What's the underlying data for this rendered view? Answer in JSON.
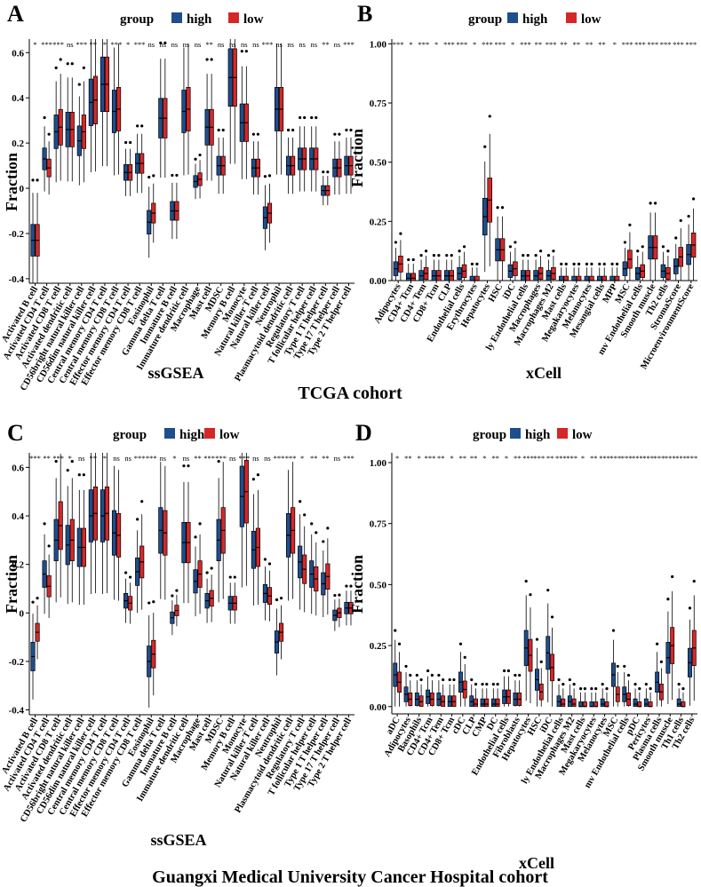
{
  "figure": {
    "cohort_top": "TCGA cohort",
    "cohort_bottom": "Guangxi Medical University Cancer Hospital cohort"
  },
  "colors": {
    "high": "#1F4E8C",
    "low": "#D62728",
    "point": "#000000",
    "axis": "#000000"
  },
  "chart_data": [
    {
      "id": "A",
      "panel_label": "A",
      "type": "boxplot",
      "method": "ssGSEA",
      "legend_title": "group",
      "legend_entries": [
        "high",
        "low"
      ],
      "ylabel": "Fraction",
      "ylim": [
        -0.42,
        0.66
      ],
      "yticks": [
        -0.4,
        -0.2,
        0,
        0.2,
        0.4,
        0.6
      ],
      "ytick_labels": [
        "-0.4",
        "-0.2",
        "0",
        "0.2",
        "0.4",
        "0.6"
      ],
      "categories": [
        "Activated B cell",
        "Activated CD4 T cell",
        "Activated CD8 T cell",
        "Activated dendritic cell",
        "CD56bright natural killer cell",
        "CD56dim natural killer cell",
        "Central memory CD4 T cell",
        "Central memory CD8 T cell",
        "Effector memory CD4 T cell",
        "Effector memory CD8 T cell",
        "Eosinophil",
        "Gamma delta T cell",
        "Immature B cell",
        "Immature dendritic cell",
        "Macrophage",
        "Mast cell",
        "MDSC",
        "Memory B cell",
        "Monocyte",
        "Natural killer T cell",
        "Natural killer cell",
        "Neutrophil",
        "Plasmacytoid dendritic cell",
        "Regulatory T cell",
        "T follicular helper cell",
        "Type 1 T helper cell",
        "Type 17 T helper cell",
        "Type 2 T helper cell"
      ],
      "significance": [
        "*",
        "***",
        "***",
        "ns",
        "***",
        "**",
        "*",
        "***",
        "*",
        "***",
        "ns",
        "ns",
        "ns",
        "ns",
        "ns",
        "**",
        "ns",
        "ns",
        "ns",
        "ns",
        "***",
        "ns",
        "ns",
        "ns",
        "ns",
        "**",
        "ns",
        "***"
      ],
      "series": [
        {
          "name": "high",
          "medians": [
            -0.23,
            0.13,
            0.25,
            0.26,
            0.21,
            0.38,
            0.46,
            0.34,
            0.07,
            0.11,
            -0.15,
            0.31,
            -0.1,
            0.34,
            0.03,
            0.27,
            0.1,
            0.49,
            0.29,
            0.09,
            -0.13,
            0.35,
            0.1,
            0.13,
            0.13,
            -0.01,
            0.09,
            0.1
          ]
        },
        {
          "name": "low",
          "medians": [
            -0.23,
            0.09,
            0.27,
            0.26,
            0.25,
            0.39,
            0.46,
            0.35,
            0.07,
            0.11,
            -0.11,
            0.31,
            -0.1,
            0.35,
            0.04,
            0.27,
            0.1,
            0.49,
            0.29,
            0.09,
            -0.11,
            0.35,
            0.1,
            0.13,
            0.13,
            -0.01,
            0.09,
            0.1
          ]
        }
      ]
    },
    {
      "id": "B",
      "panel_label": "B",
      "type": "boxplot",
      "method": "xCell",
      "legend_title": "group",
      "legend_entries": [
        "high",
        "low"
      ],
      "ylabel": "Fraction",
      "ylim": [
        0,
        1.02
      ],
      "yticks": [
        0,
        0.25,
        0.5,
        0.75,
        1.0
      ],
      "ytick_labels": [
        "0.00",
        "0.25",
        "0.50",
        "0.75",
        "1.00"
      ],
      "categories": [
        "Adipocytes",
        "CD4+ Tcm",
        "CD4+ Tem",
        "CD8+ Tcm",
        "CLP",
        "Endothelial cells",
        "Erythrocytes",
        "Hepatocytes",
        "HSC",
        "iDC",
        "ly Endothelial cells",
        "Macrophages",
        "Macrophages M2",
        "Mast cells",
        "Megakaryocytes",
        "Melanocytes",
        "Mesangial cells",
        "MPP",
        "MSC",
        "mv Endothelial cells",
        "Smooth muscle",
        "Th2 cells",
        "StromaScore",
        "MicroenvironmentScore"
      ],
      "significance": [
        "***",
        "*",
        "***",
        "*",
        "***",
        "***",
        "*",
        "***",
        "***",
        "*",
        "***",
        "**",
        "***",
        "**",
        "**",
        "**",
        "**",
        "*",
        "***",
        "***",
        "***",
        "***",
        "***",
        "***"
      ],
      "series": [
        {
          "name": "high",
          "medians": [
            0.05,
            0.01,
            0.02,
            0.02,
            0.02,
            0.03,
            0.0,
            0.27,
            0.13,
            0.04,
            0.02,
            0.02,
            0.02,
            0.0,
            0.0,
            0.0,
            0.0,
            0.0,
            0.05,
            0.03,
            0.14,
            0.04,
            0.06,
            0.11
          ]
        },
        {
          "name": "low",
          "medians": [
            0.07,
            0.01,
            0.03,
            0.02,
            0.02,
            0.04,
            0.0,
            0.34,
            0.13,
            0.05,
            0.02,
            0.03,
            0.03,
            0.0,
            0.0,
            0.0,
            0.0,
            0.0,
            0.09,
            0.04,
            0.14,
            0.03,
            0.1,
            0.15
          ]
        }
      ]
    },
    {
      "id": "C",
      "panel_label": "C",
      "type": "boxplot",
      "method": "ssGSEA",
      "legend_title": "group",
      "legend_entries": [
        "high",
        "low"
      ],
      "ylabel": "Fraction",
      "ylim": [
        -0.42,
        0.66
      ],
      "yticks": [
        -0.4,
        -0.2,
        0,
        0.2,
        0.4,
        0.6
      ],
      "ytick_labels": [
        "-0.4",
        "-0.2",
        "0",
        "0.2",
        "0.4",
        "0.6"
      ],
      "categories": [
        "Activated B cell",
        "Activated CD4 T cell",
        "Activated CD8 T cell",
        "Activated dendritic cell",
        "CD56bright natural killer cell",
        "CD56dim natural killer cell",
        "Central memory CD4 T cell",
        "Central memory CD8 T cell",
        "Effector memory CD4 T cell",
        "Effector memory CD8 T cell",
        "Eosinophil",
        "Gamma delta T cell",
        "Immature B cell",
        "Immature dendritic cell",
        "Macrophage",
        "Mast cell",
        "MDSC",
        "Memory B cell",
        "Monocyte",
        "Natural killer T cell",
        "Natural killer cell",
        "Neutrophil",
        "Plasmacytoid dendritic cell",
        "Regulatory T cell",
        "T follicular helper cell",
        "Type 1 T helper cell",
        "Type 17 T helper cell",
        "Type 2 T helper cell"
      ],
      "significance": [
        "***",
        "**",
        "***",
        "*",
        "ns",
        "**",
        "*",
        "ns",
        "ns",
        "***",
        "***",
        "ns",
        "*",
        "ns",
        "**",
        "***",
        "***",
        "ns",
        "***",
        "ns",
        "ns",
        "***",
        "***",
        "*",
        "**",
        "**",
        "ns",
        "***"
      ],
      "series": [
        {
          "name": "high",
          "medians": [
            -0.18,
            0.16,
            0.3,
            0.28,
            0.27,
            0.4,
            0.4,
            0.33,
            0.05,
            0.17,
            -0.2,
            0.34,
            -0.02,
            0.29,
            0.13,
            0.05,
            0.3,
            0.04,
            0.48,
            0.26,
            0.08,
            -0.12,
            0.32,
            0.21,
            0.16,
            0.12,
            -0.01,
            0.02
          ]
        },
        {
          "name": "low",
          "medians": [
            -0.08,
            0.11,
            0.36,
            0.3,
            0.27,
            0.41,
            0.41,
            0.32,
            0.04,
            0.21,
            -0.17,
            0.33,
            0.01,
            0.29,
            0.16,
            0.06,
            0.34,
            0.04,
            0.5,
            0.27,
            0.07,
            -0.08,
            0.34,
            0.18,
            0.14,
            0.15,
            0.0,
            0.02
          ]
        }
      ]
    },
    {
      "id": "D",
      "panel_label": "D",
      "type": "boxplot",
      "method": "xCell",
      "legend_title": "group",
      "legend_entries": [
        "high",
        "low"
      ],
      "ylabel": "Fraction",
      "ylim": [
        -0.03,
        1.04
      ],
      "yticks": [
        0,
        0.25,
        0.5,
        0.75,
        1.0
      ],
      "ytick_labels": [
        "0.00",
        "0.25",
        "0.50",
        "0.75",
        "1.00"
      ],
      "categories": [
        "aDC",
        "Adipocytes",
        "Basophils",
        "CD4+ Tcm",
        "CD4+ Tem",
        "CD8+ Tcm",
        "cDC",
        "CLP",
        "CMP",
        "DC",
        "Endothelial cells",
        "Fibroblasts",
        "Hepatocytes",
        "HSC",
        "iDC",
        "ly Endothelial cells",
        "Macrophages M2",
        "Mast cells",
        "Megakaryocytes",
        "Melanocytes",
        "MSC",
        "mv Endothelial cells",
        "pDC",
        "Pericytes",
        "Plasma cells",
        "Smooth muscle",
        "Th1 cells",
        "Th2 cells"
      ],
      "significance": [
        "*",
        "**",
        "*",
        "***",
        "**",
        "*",
        "**",
        "**",
        "*",
        "**",
        "*",
        "**",
        "***",
        "***",
        "**",
        "***",
        "***",
        "*",
        "**",
        "***",
        "***",
        "***",
        "***",
        "***",
        "***",
        "***",
        "***",
        "***"
      ],
      "series": [
        {
          "name": "high",
          "medians": [
            0.13,
            0.05,
            0.03,
            0.04,
            0.03,
            0.02,
            0.1,
            0.02,
            0.01,
            0.01,
            0.04,
            0.03,
            0.24,
            0.11,
            0.22,
            0.02,
            0.02,
            0.0,
            0.0,
            0.01,
            0.13,
            0.05,
            0.01,
            0.01,
            0.1,
            0.2,
            0.01,
            0.18
          ]
        },
        {
          "name": "low",
          "medians": [
            0.1,
            0.03,
            0.02,
            0.03,
            0.02,
            0.02,
            0.07,
            0.01,
            0.01,
            0.01,
            0.04,
            0.03,
            0.21,
            0.06,
            0.16,
            0.01,
            0.01,
            0.0,
            0.0,
            0.0,
            0.05,
            0.03,
            0.0,
            0.0,
            0.06,
            0.25,
            0.0,
            0.24
          ]
        }
      ]
    }
  ]
}
